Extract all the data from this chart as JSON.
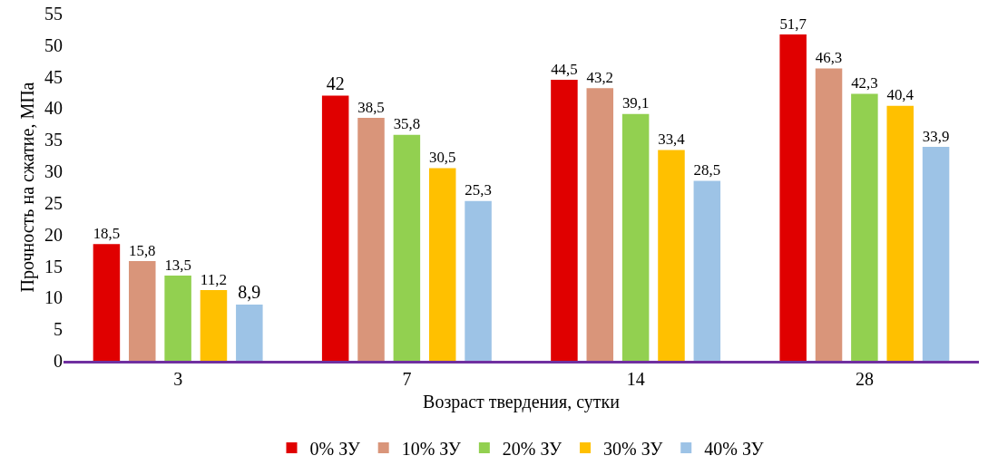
{
  "chart_data": {
    "type": "bar",
    "ylabel": "Прочность на сжатие, МПа",
    "xlabel": "Возраст твердения, сутки",
    "categories": [
      "3",
      "7",
      "14",
      "28"
    ],
    "series": [
      {
        "name": "0% ЗУ",
        "color": "#e00000",
        "values": [
          18.5,
          42,
          44.5,
          51.7
        ],
        "value_labels": [
          "18,5",
          "42",
          "44,5",
          "51,7"
        ]
      },
      {
        "name": "10% ЗУ",
        "color": "#d9957a",
        "values": [
          15.8,
          38.5,
          43.2,
          46.3
        ],
        "value_labels": [
          "15,8",
          "38,5",
          "43,2",
          "46,3"
        ]
      },
      {
        "name": "20% ЗУ",
        "color": "#92d050",
        "values": [
          13.5,
          35.8,
          39.1,
          42.3
        ],
        "value_labels": [
          "13,5",
          "35,8",
          "39,1",
          "42,3"
        ]
      },
      {
        "name": "30% ЗУ",
        "color": "#ffc000",
        "values": [
          11.2,
          30.5,
          33.4,
          40.4
        ],
        "value_labels": [
          "11,2",
          "30,5",
          "33,4",
          "40,4"
        ]
      },
      {
        "name": "40% ЗУ",
        "color": "#9dc3e6",
        "values": [
          8.9,
          25.3,
          28.5,
          33.9
        ],
        "value_labels": [
          "8,9",
          "25,3",
          "28,5",
          "33,9"
        ]
      }
    ],
    "ylim": [
      0,
      55
    ],
    "yticks": [
      0,
      5,
      10,
      15,
      20,
      25,
      30,
      35,
      40,
      45,
      50,
      55
    ],
    "grid": false,
    "legend": "bottom"
  }
}
